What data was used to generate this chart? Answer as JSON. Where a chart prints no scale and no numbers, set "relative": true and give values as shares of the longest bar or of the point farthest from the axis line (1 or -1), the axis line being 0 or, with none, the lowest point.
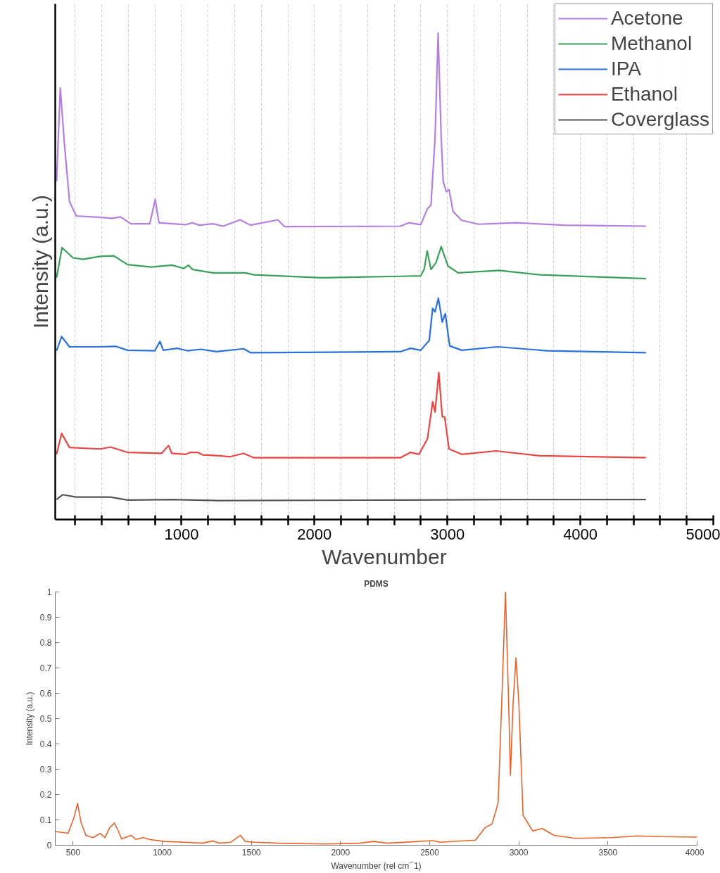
{
  "chart_data": [
    {
      "type": "line",
      "xlabel": "Wavenumber",
      "ylabel": "Intensity (a.u.)",
      "relative": true,
      "xlim": [
        50,
        5000
      ],
      "xticks": [
        {
          "value": 200,
          "label": null
        },
        {
          "value": 400,
          "label": null
        },
        {
          "value": 600,
          "label": null
        },
        {
          "value": 800,
          "label": null
        },
        1000,
        {
          "value": 1200,
          "label": null
        },
        {
          "value": 1400,
          "label": null
        },
        {
          "value": 1600,
          "label": null
        },
        {
          "value": 1800,
          "label": null
        },
        2000,
        {
          "value": 2200,
          "label": null
        },
        {
          "value": 2400,
          "label": null
        },
        {
          "value": 2600,
          "label": null
        },
        {
          "value": 2800,
          "label": null
        },
        3000,
        {
          "value": 3200,
          "label": null
        },
        {
          "value": 3400,
          "label": null
        },
        {
          "value": 3600,
          "label": null
        },
        {
          "value": 3800,
          "label": null
        },
        4000,
        {
          "value": 4200,
          "label": null
        },
        {
          "value": 4400,
          "label": null
        },
        {
          "value": 4600,
          "label": null
        },
        {
          "value": 4800,
          "label": null
        },
        5000
      ],
      "grid": "x",
      "tick_labels": "x",
      "legend": "top right",
      "line_style": "solid",
      "marker": "none",
      "series": [
        {
          "name": "Acetone",
          "color": "#b57ee0",
          "x": [
            60,
            88,
            119,
            157,
            208,
            401,
            478,
            542,
            619,
            761,
            802,
            830,
            1030,
            1082,
            1133,
            1236,
            1313,
            1441,
            1518,
            1724,
            1775,
            2646,
            2709,
            2799,
            2850,
            2876,
            2907,
            2930,
            2953,
            2968,
            2991,
            3012,
            3043,
            3107,
            3235,
            3518,
            3877,
            4493
          ],
          "values": [
            0.695,
            0.887,
            0.772,
            0.654,
            0.624,
            0.621,
            0.619,
            0.622,
            0.608,
            0.608,
            0.658,
            0.61,
            0.606,
            0.61,
            0.605,
            0.608,
            0.603,
            0.616,
            0.605,
            0.616,
            0.602,
            0.603,
            0.61,
            0.606,
            0.639,
            0.646,
            0.786,
            1.0,
            0.786,
            0.695,
            0.674,
            0.678,
            0.633,
            0.615,
            0.607,
            0.61,
            0.605,
            0.603
          ]
        },
        {
          "name": "Methanol",
          "color": "#3aa05a",
          "x": [
            60,
            101,
            183,
            260,
            388,
            491,
            594,
            773,
            928,
            1017,
            1051,
            1082,
            1236,
            1480,
            1544,
            2057,
            2646,
            2799,
            2825,
            2848,
            2876,
            2914,
            2953,
            3004,
            3081,
            3389,
            3698,
            4493
          ],
          "values": [
            0.497,
            0.559,
            0.538,
            0.535,
            0.541,
            0.542,
            0.524,
            0.519,
            0.523,
            0.516,
            0.523,
            0.514,
            0.507,
            0.507,
            0.503,
            0.497,
            0.5,
            0.501,
            0.514,
            0.552,
            0.514,
            0.528,
            0.561,
            0.521,
            0.507,
            0.512,
            0.503,
            0.495
          ]
        },
        {
          "name": "IPA",
          "color": "#2a6fdc",
          "x": [
            60,
            98,
            157,
            388,
            504,
            594,
            799,
            838,
            863,
            966,
            1043,
            1146,
            1261,
            1467,
            1518,
            2646,
            2722,
            2799,
            2863,
            2889,
            2907,
            2932,
            2961,
            2984,
            3017,
            3107,
            3377,
            3749,
            4493
          ],
          "values": [
            0.347,
            0.376,
            0.355,
            0.355,
            0.356,
            0.348,
            0.347,
            0.366,
            0.348,
            0.352,
            0.347,
            0.35,
            0.345,
            0.351,
            0.343,
            0.345,
            0.352,
            0.348,
            0.368,
            0.434,
            0.427,
            0.455,
            0.406,
            0.423,
            0.357,
            0.348,
            0.355,
            0.347,
            0.343
          ]
        },
        {
          "name": "Ethanol",
          "color": "#e84545",
          "x": [
            60,
            98,
            157,
            388,
            465,
            594,
            850,
            902,
            927,
            1030,
            1069,
            1120,
            1159,
            1287,
            1364,
            1467,
            1544,
            2646,
            2722,
            2786,
            2850,
            2889,
            2907,
            2935,
            2961,
            2979,
            3012,
            3107,
            3364,
            3698,
            4493
          ],
          "values": [
            0.134,
            0.177,
            0.148,
            0.145,
            0.149,
            0.138,
            0.136,
            0.152,
            0.136,
            0.134,
            0.138,
            0.138,
            0.133,
            0.131,
            0.129,
            0.136,
            0.127,
            0.127,
            0.138,
            0.134,
            0.166,
            0.242,
            0.221,
            0.302,
            0.211,
            0.211,
            0.145,
            0.134,
            0.141,
            0.131,
            0.127
          ]
        },
        {
          "name": "Coverglass",
          "color": "#555555",
          "x": [
            60,
            106,
            208,
            465,
            594,
            928,
            1287,
            2646,
            3492,
            4493
          ],
          "values": [
            0.041,
            0.051,
            0.046,
            0.046,
            0.04,
            0.041,
            0.039,
            0.04,
            0.041,
            0.041
          ]
        }
      ]
    },
    {
      "type": "line",
      "title": "PDMS",
      "xlabel": "Wavenumber (rel cm¯1)",
      "ylabel": "Intensity (a.u.)",
      "xlim": [
        400,
        4000
      ],
      "xticks": [
        500,
        1000,
        1500,
        2000,
        2500,
        3000,
        3500,
        4000
      ],
      "ylim": [
        0,
        1
      ],
      "yticks": [
        0,
        0.1,
        0.2,
        0.3,
        0.4,
        0.5,
        0.6,
        0.7,
        0.8,
        0.9,
        1
      ],
      "grid": false,
      "legend": false,
      "series": [
        {
          "color": "#e8622a",
          "x": [
            400,
            472,
            505,
            525,
            545,
            572,
            612,
            652,
            679,
            705,
            732,
            752,
            772,
            825,
            852,
            892,
            932,
            1012,
            1119,
            1225,
            1285,
            1319,
            1385,
            1439,
            1465,
            1519,
            1652,
            1919,
            2105,
            2185,
            2265,
            2316,
            2516,
            2556,
            2757,
            2810,
            2850,
            2884,
            2904,
            2925,
            2941,
            2953,
            2968,
            2984,
            3000,
            3024,
            3078,
            3131,
            3198,
            3318,
            3519,
            3666,
            3786,
            4000
          ],
          "values": [
            0.054,
            0.047,
            0.109,
            0.165,
            0.089,
            0.039,
            0.03,
            0.047,
            0.03,
            0.069,
            0.087,
            0.059,
            0.025,
            0.039,
            0.023,
            0.03,
            0.022,
            0.015,
            0.012,
            0.008,
            0.017,
            0.008,
            0.012,
            0.039,
            0.015,
            0.012,
            0.008,
            0.005,
            0.008,
            0.015,
            0.008,
            0.01,
            0.018,
            0.012,
            0.02,
            0.069,
            0.084,
            0.168,
            0.563,
            1.0,
            0.612,
            0.276,
            0.563,
            0.74,
            0.563,
            0.118,
            0.056,
            0.066,
            0.039,
            0.027,
            0.03,
            0.037,
            0.034,
            0.032
          ]
        }
      ]
    }
  ]
}
